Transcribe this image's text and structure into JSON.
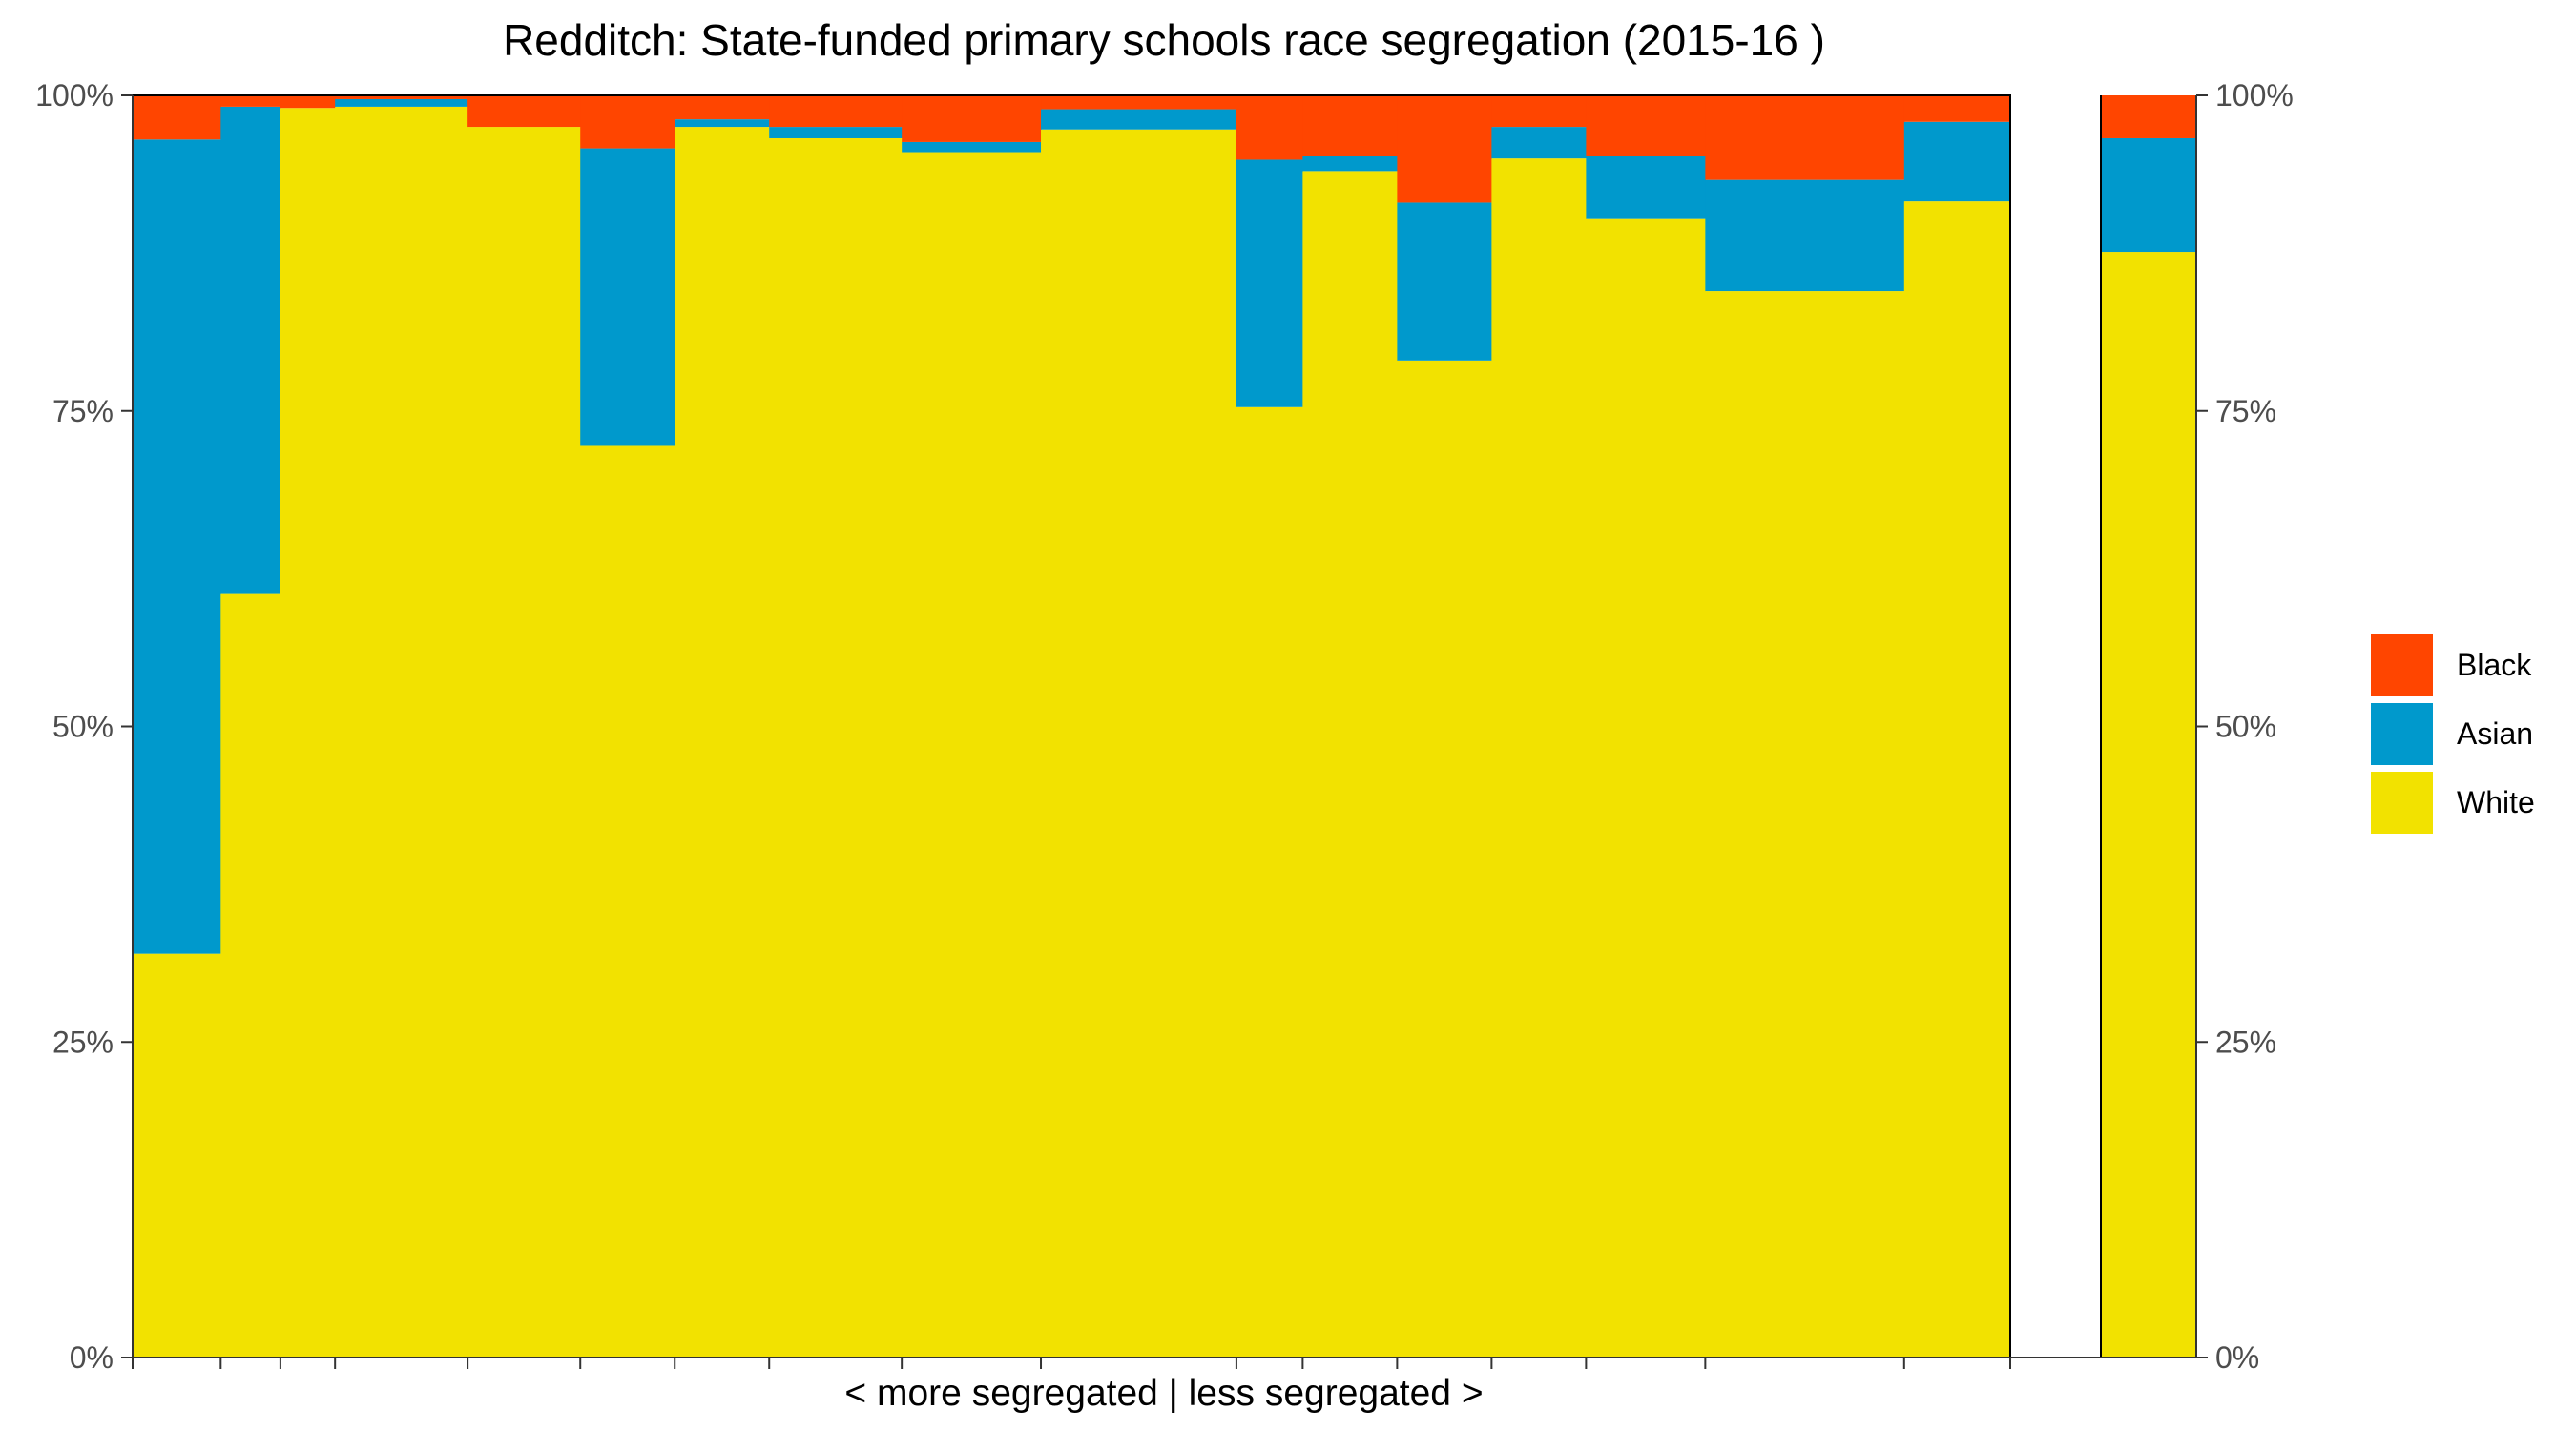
{
  "chart_data": {
    "type": "bar",
    "subtype": "stacked-100-percent-variable-width",
    "title": "Redditch: State-funded primary schools race segregation (2015-16 )",
    "xlabel": "< more segregated | less segregated >",
    "ylabel": "",
    "ylim": [
      0,
      1
    ],
    "y_ticks": [
      "0%",
      "25%",
      "50%",
      "75%",
      "100%"
    ],
    "secondary_y_axis": true,
    "grid": false,
    "legend_position": "right",
    "colors": {
      "Black": "#ff4500",
      "Asian": "#0099cc",
      "White": "#f2e200"
    },
    "series": [
      {
        "name": "Black"
      },
      {
        "name": "Asian"
      },
      {
        "name": "White"
      }
    ],
    "schools": [
      {
        "share": 0.0469,
        "White": 0.32,
        "Asian": 0.645,
        "Black": 0.035
      },
      {
        "share": 0.0318,
        "White": 0.605,
        "Asian": 0.386,
        "Black": 0.009
      },
      {
        "share": 0.0291,
        "White": 0.99,
        "Asian": 0.0,
        "Black": 0.01
      },
      {
        "share": 0.0706,
        "White": 0.991,
        "Asian": 0.006,
        "Black": 0.003
      },
      {
        "share": 0.06,
        "White": 0.975,
        "Asian": 0.0,
        "Black": 0.025
      },
      {
        "share": 0.0503,
        "White": 0.723,
        "Asian": 0.235,
        "Black": 0.042
      },
      {
        "share": 0.0503,
        "White": 0.975,
        "Asian": 0.006,
        "Black": 0.019
      },
      {
        "share": 0.0706,
        "White": 0.966,
        "Asian": 0.009,
        "Black": 0.025
      },
      {
        "share": 0.0741,
        "White": 0.955,
        "Asian": 0.008,
        "Black": 0.037
      },
      {
        "share": 0.1041,
        "White": 0.973,
        "Asian": 0.016,
        "Black": 0.011
      },
      {
        "share": 0.0353,
        "White": 0.753,
        "Asian": 0.196,
        "Black": 0.051
      },
      {
        "share": 0.0503,
        "White": 0.94,
        "Asian": 0.012,
        "Black": 0.048
      },
      {
        "share": 0.0503,
        "White": 0.79,
        "Asian": 0.125,
        "Black": 0.085
      },
      {
        "share": 0.0503,
        "White": 0.95,
        "Asian": 0.025,
        "Black": 0.025
      },
      {
        "share": 0.0635,
        "White": 0.902,
        "Asian": 0.05,
        "Black": 0.048
      },
      {
        "share": 0.1059,
        "White": 0.845,
        "Asian": 0.088,
        "Black": 0.067
      },
      {
        "share": 0.0565,
        "White": 0.916,
        "Asian": 0.063,
        "Black": 0.021
      }
    ],
    "summary": {
      "White": 0.876,
      "Asian": 0.09,
      "Black": 0.034
    }
  }
}
